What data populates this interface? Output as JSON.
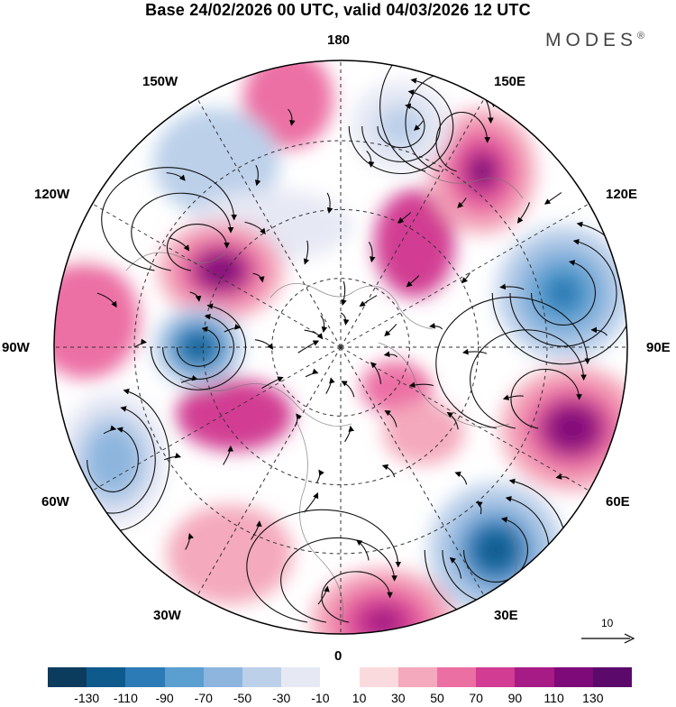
{
  "header": {
    "title": "Base 24/02/2026 00 UTC, valid 04/03/2026 12 UTC",
    "brand": "MODES",
    "brand_mark": "®"
  },
  "map": {
    "projection": "north-polar-stereographic",
    "longitude_labels": {
      "top": "180",
      "bottom": "0",
      "left": "90W",
      "right": "90E",
      "upper_left_1": "150W",
      "upper_left_2": "120W",
      "upper_right_1": "150E",
      "upper_right_2": "120E",
      "lower_left_1": "60W",
      "lower_left_2": "30W",
      "lower_right_1": "60E",
      "lower_right_2": "30E"
    },
    "anomaly_centers": [
      {
        "region": "east-siberia",
        "sign": "positive",
        "value": 110
      },
      {
        "region": "canada",
        "sign": "positive",
        "value": 120
      },
      {
        "region": "hudson-bay",
        "sign": "negative",
        "value": -130
      },
      {
        "region": "north-atlantic",
        "sign": "negative",
        "value": -70
      },
      {
        "region": "central-asia",
        "sign": "negative",
        "value": -100
      },
      {
        "region": "west-asia",
        "sign": "positive",
        "value": 120
      },
      {
        "region": "eastern-europe",
        "sign": "negative",
        "value": -120
      },
      {
        "region": "north-africa",
        "sign": "positive",
        "value": 90
      },
      {
        "region": "north-pacific",
        "sign": "negative",
        "value": -50
      }
    ]
  },
  "reference_vector": {
    "label": "10"
  },
  "colorbar": {
    "colors": [
      "#0b3c5d",
      "#0f5a8c",
      "#2c7bb6",
      "#5a9fd0",
      "#8db5de",
      "#bcd0ea",
      "#e6e8f4",
      "#ffffff",
      "#fadadd",
      "#f4a9bc",
      "#ec6fa4",
      "#d23c93",
      "#a61b85",
      "#7e0a79",
      "#5b0a6b"
    ],
    "tick_labels": [
      "-130",
      "-110",
      "-90",
      "-70",
      "-50",
      "-30",
      "-10",
      "10",
      "30",
      "50",
      "70",
      "90",
      "110",
      "130"
    ]
  }
}
